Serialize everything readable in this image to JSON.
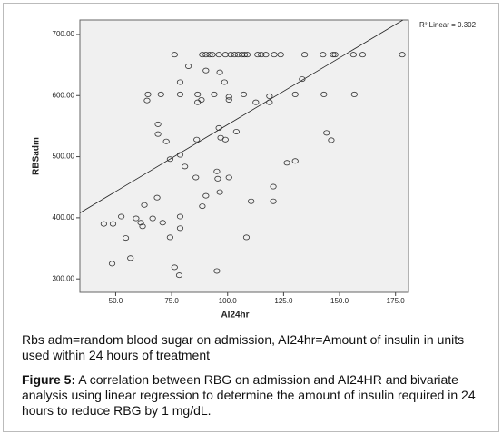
{
  "chart_data": {
    "type": "scatter",
    "x_label": "AI24hr",
    "y_label": "RBSadm",
    "annotation": "R² Linear = 0.302",
    "xlim": [
      34,
      180.8
    ],
    "ylim": [
      278,
      723.7
    ],
    "xticks": [
      {
        "value": 50,
        "label": "50.0"
      },
      {
        "value": 75,
        "label": "75.0"
      },
      {
        "value": 100,
        "label": "100.0"
      },
      {
        "value": 125,
        "label": "125.0"
      },
      {
        "value": 150,
        "label": "150.0"
      },
      {
        "value": 175,
        "label": "175.0"
      }
    ],
    "yticks": [
      {
        "value": 300,
        "label": "300.00"
      },
      {
        "value": 400,
        "label": "400.00"
      },
      {
        "value": 500,
        "label": "500.00"
      },
      {
        "value": 600,
        "label": "600.00"
      },
      {
        "value": 700,
        "label": "700.00"
      }
    ],
    "series": [
      {
        "color": "#333333",
        "x": [
          76.3,
          88.7,
          90.3,
          92.0,
          93.2,
          96.1,
          99.0,
          101.4,
          103.1,
          104.7,
          106.4,
          107.6,
          108.8,
          113.4,
          115.0,
          117.1,
          120.8,
          123.7,
          134.4,
          142.6,
          147.1,
          148.0,
          156.2,
          160.3,
          178.0,
          82.5,
          64.4,
          70.2,
          78.8,
          86.6,
          94.0,
          100.6,
          100.6,
          107.2,
          118.7,
          118.7,
          130.2,
          143.0,
          156.6,
          90.3,
          96.5,
          98.6,
          78.8,
          86.6,
          88.3,
          64.0,
          112.6,
          133.3,
          68.9,
          68.9,
          72.6,
          96.1,
          103.9,
          96.9,
          99.0,
          144.2,
          146.3,
          86.2,
          74.3,
          78.8,
          80.9,
          95.2,
          95.6,
          85.8,
          100.6,
          126.5,
          130.2,
          96.5,
          90.3,
          88.7,
          110.5,
          120.4,
          120.4,
          68.5,
          62.8,
          52.5,
          59.1,
          66.5,
          78.8,
          44.7,
          48.8,
          61.2,
          62.0,
          71.0,
          78.8,
          54.5,
          74.3,
          108.4,
          56.6,
          48.4,
          76.3,
          78.4,
          95.2
        ],
        "values": [
          667,
          667,
          667,
          667,
          667,
          667,
          667,
          667,
          667,
          667,
          667,
          667,
          667,
          667,
          667,
          667,
          667,
          667,
          667,
          667,
          667,
          667,
          667,
          667,
          667,
          648,
          602,
          602,
          602,
          602,
          602,
          598,
          593,
          602,
          599,
          589,
          602,
          602,
          602,
          641,
          638,
          622,
          622,
          589,
          593,
          592,
          589,
          627,
          553,
          537,
          525,
          547,
          541,
          531,
          528,
          539,
          527,
          528,
          496,
          503,
          484,
          476,
          464,
          466,
          466,
          490,
          493,
          442,
          436,
          419,
          427,
          451,
          427,
          433,
          421,
          402,
          399,
          399,
          402,
          390,
          390,
          392,
          386,
          392,
          383,
          367,
          368,
          368,
          334,
          325,
          319,
          306,
          313
        ]
      }
    ],
    "fit": {
      "color": "#222222",
      "x": [
        34,
        178.3
      ],
      "values": [
        408,
        723.7
      ]
    }
  },
  "note": "Rbs adm=random blood sugar on admission, AI24hr=Amount of insulin in units used within 24 hours of treatment",
  "caption": {
    "label": "Figure 5:",
    "text": "A correlation between RBG on admission and AI24HR and bivariate analysis using linear regression to determine the amount of insulin required in 24 hours to reduce RBG by 1 mg/dL."
  }
}
